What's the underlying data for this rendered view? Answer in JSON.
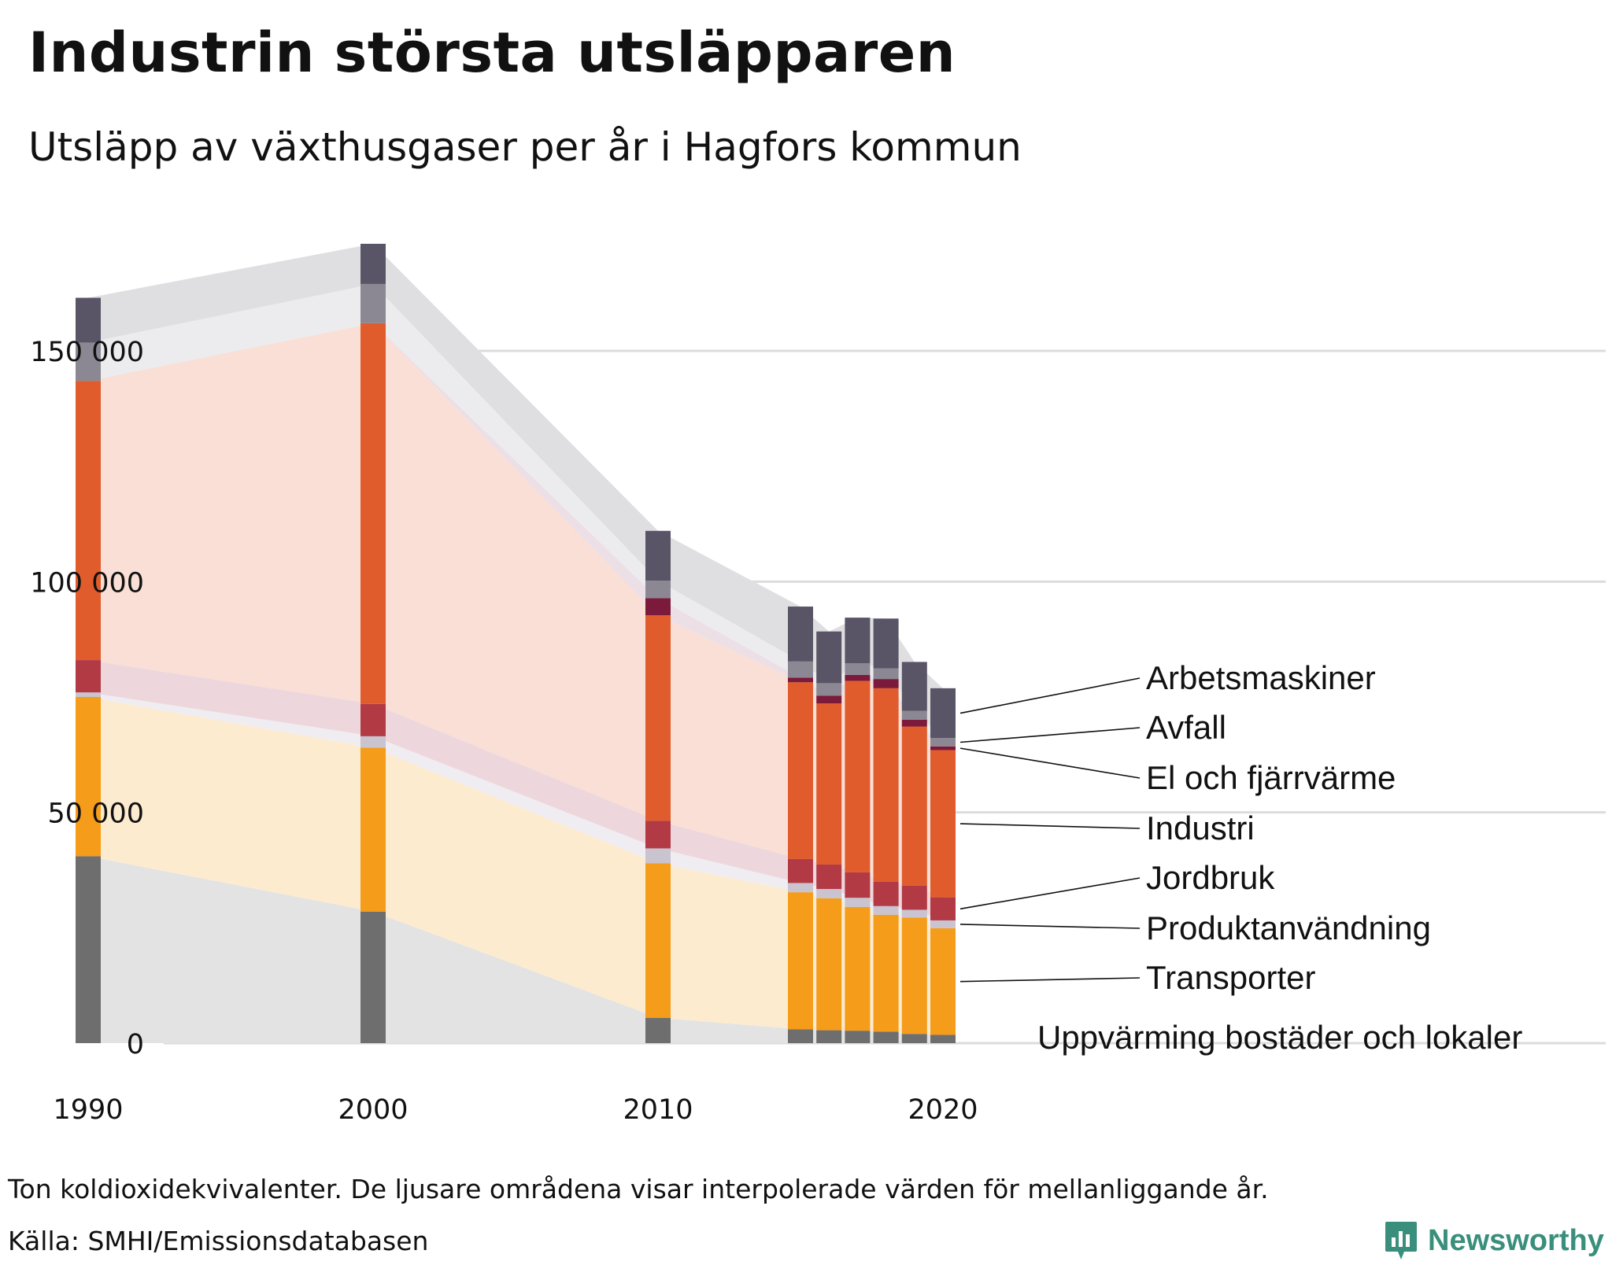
{
  "title": "Industrin största utsläpparen",
  "subtitle": "Utsläpp av växthusgaser per år i Hagfors kommun",
  "note": "Ton koldioxidekvivalenter. De ljusare områdena visar interpolerade värden för mellanliggande år.",
  "source": "Källa: SMHI/Emissionsdatabasen",
  "logo_text": "Newsworthy",
  "chart_data": {
    "type": "bar",
    "stacked": true,
    "x": [
      1990,
      2000,
      2010,
      2015,
      2016,
      2017,
      2018,
      2019,
      2020
    ],
    "x_ticks": [
      "1990",
      "2000",
      "2010",
      "2020"
    ],
    "y_ticks": [
      "0",
      "50 000",
      "100 000",
      "150 000"
    ],
    "ylim": [
      0,
      175000
    ],
    "series": [
      {
        "name": "Uppvärming bostäder och lokaler",
        "color": "#6e6e6e",
        "area_color": "#e3e3e3",
        "values": [
          40500,
          28500,
          5500,
          3000,
          2800,
          2700,
          2500,
          2000,
          1800
        ]
      },
      {
        "name": "Transporter",
        "color": "#f59c1a",
        "area_color": "#fdebcf",
        "values": [
          34500,
          35500,
          33500,
          29700,
          28600,
          26800,
          25300,
          25200,
          23100
        ]
      },
      {
        "name": "Produktanvändning",
        "color": "#c9c4cf",
        "area_color": "#efedf2",
        "values": [
          1000,
          2500,
          3200,
          2000,
          2000,
          2000,
          1900,
          1700,
          1700
        ]
      },
      {
        "name": "Jordbruk",
        "color": "#b23a45",
        "area_color": "#eed7dc",
        "values": [
          7000,
          7000,
          6000,
          5200,
          5300,
          5500,
          5300,
          5200,
          5000
        ]
      },
      {
        "name": "Industri",
        "color": "#e05c2c",
        "area_color": "#f9dfd5",
        "values": [
          60500,
          82500,
          44500,
          38300,
          34900,
          41500,
          41900,
          34500,
          31900
        ]
      },
      {
        "name": "El och fjärrvärme",
        "color": "#7b1a3a",
        "area_color": "#ecdfe6",
        "values": [
          0,
          0,
          3700,
          1000,
          1700,
          1300,
          2000,
          1500,
          800
        ]
      },
      {
        "name": "Avfall",
        "color": "#8b8893",
        "area_color": "#ececef",
        "values": [
          8300,
          8500,
          3800,
          3500,
          2700,
          2500,
          2300,
          1900,
          1800
        ]
      },
      {
        "name": "Arbetsmaskiner",
        "color": "#595566",
        "area_color": "#dfdfe2",
        "values": [
          9700,
          8700,
          10800,
          11900,
          11200,
          9900,
          10800,
          10600,
          10800
        ]
      }
    ]
  }
}
